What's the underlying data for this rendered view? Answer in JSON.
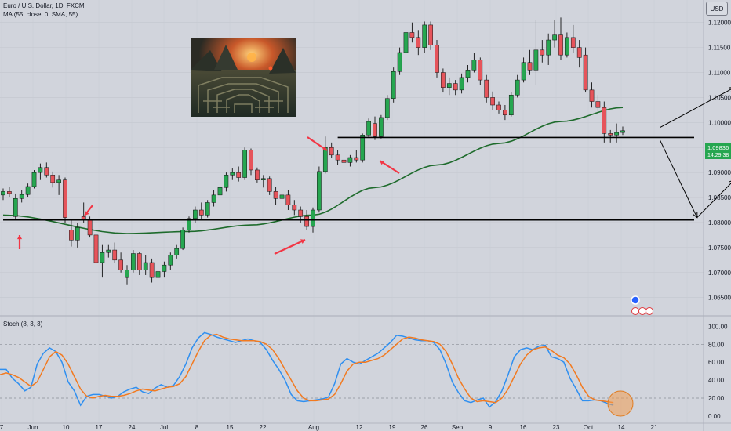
{
  "header": {
    "symbol_title": "Euro / U.S. Dollar, 1D, FXCM",
    "ma_label": "MA (55, close, 0, SMA, 55)",
    "currency": "USD"
  },
  "stoch_label": "Stoch (8, 3, 3)",
  "price_tag": {
    "price": "1.09836",
    "countdown": "14:29:38"
  },
  "colors": {
    "bull": "#26a650",
    "bear": "#e6545b",
    "ma": "#1e6b2c",
    "k_line": "#2f8ff0",
    "d_line": "#f27a20",
    "annotation_arrow": "#f23645",
    "background": "#d1d4dc"
  },
  "chart_data": [
    {
      "type": "candlestick",
      "title": "Euro / U.S. Dollar, 1D, FXCM",
      "xlabel": "",
      "ylabel": "",
      "x_ticks": [
        "7",
        "Jun",
        "10",
        "17",
        "24",
        "Jul",
        "8",
        "15",
        "22",
        "Aug",
        "12",
        "19",
        "26",
        "Sep",
        "9",
        "16",
        "23",
        "Oct",
        "14",
        "21"
      ],
      "y_ticks": [
        "1.12000",
        "1.11500",
        "1.11000",
        "1.10500",
        "1.10000",
        "1.09500",
        "1.09000",
        "1.08500",
        "1.08000",
        "1.07500",
        "1.07000",
        "1.06500"
      ],
      "ylim": [
        1.0615,
        1.1245
      ],
      "grid": true,
      "last_price": 1.09836,
      "candles": [
        [
          1.0855,
          1.0868,
          1.0845,
          1.0862
        ],
        [
          1.0862,
          1.0872,
          1.085,
          1.0858
        ],
        [
          1.0812,
          1.0858,
          1.0805,
          1.0848
        ],
        [
          1.0848,
          1.0865,
          1.084,
          1.0856
        ],
        [
          1.0856,
          1.0878,
          1.085,
          1.0872
        ],
        [
          1.0872,
          1.0905,
          1.0868,
          1.09
        ],
        [
          1.09,
          1.0918,
          1.0885,
          1.091
        ],
        [
          1.091,
          1.092,
          1.089,
          1.0895
        ],
        [
          1.0895,
          1.0902,
          1.087,
          1.088
        ],
        [
          1.088,
          1.0895,
          1.0855,
          1.0885
        ],
        [
          1.0885,
          1.089,
          1.08,
          1.081
        ],
        [
          1.0785,
          1.0805,
          1.0752,
          1.0765
        ],
        [
          1.0765,
          1.08,
          1.075,
          1.079
        ],
        [
          1.0812,
          1.084,
          1.08,
          1.0805
        ],
        [
          1.0805,
          1.0812,
          1.077,
          1.0775
        ],
        [
          1.0775,
          1.0785,
          1.07,
          1.072
        ],
        [
          1.072,
          1.0755,
          1.069,
          1.074
        ],
        [
          1.074,
          1.0755,
          1.073,
          1.0745
        ],
        [
          1.0745,
          1.076,
          1.072,
          1.0725
        ],
        [
          1.0725,
          1.074,
          1.07,
          1.0705
        ],
        [
          1.069,
          1.0715,
          1.0675,
          1.0705
        ],
        [
          1.0705,
          1.0745,
          1.07,
          1.0738
        ],
        [
          1.0738,
          1.0742,
          1.0695,
          1.0705
        ],
        [
          1.0705,
          1.0735,
          1.0695,
          1.072
        ],
        [
          1.072,
          1.0728,
          1.068,
          1.069
        ],
        [
          1.069,
          1.0715,
          1.0672,
          1.0702
        ],
        [
          1.0702,
          1.0722,
          1.069,
          1.0715
        ],
        [
          1.0715,
          1.074,
          1.0705,
          1.0735
        ],
        [
          1.0735,
          1.0755,
          1.0728,
          1.0748
        ],
        [
          1.0748,
          1.079,
          1.0745,
          1.0785
        ],
        [
          1.0785,
          1.0812,
          1.078,
          1.0808
        ],
        [
          1.0808,
          1.0832,
          1.08,
          1.0825
        ],
        [
          1.0825,
          1.084,
          1.0805,
          1.0815
        ],
        [
          1.0815,
          1.0845,
          1.081,
          1.084
        ],
        [
          1.084,
          1.0865,
          1.0832,
          1.0855
        ],
        [
          1.0855,
          1.0875,
          1.0845,
          1.087
        ],
        [
          1.087,
          1.09,
          1.0862,
          1.0895
        ],
        [
          1.0895,
          1.0908,
          1.0885,
          1.09
        ],
        [
          1.09,
          1.0912,
          1.0882,
          1.089
        ],
        [
          1.089,
          1.095,
          1.0885,
          1.0945
        ],
        [
          1.0945,
          1.0948,
          1.0895,
          1.0905
        ],
        [
          1.0905,
          1.091,
          1.088,
          1.0885
        ],
        [
          1.0885,
          1.0895,
          1.087,
          1.0888
        ],
        [
          1.0888,
          1.0892,
          1.0855,
          1.0862
        ],
        [
          1.0862,
          1.0872,
          1.0835,
          1.0848
        ],
        [
          1.0848,
          1.086,
          1.083,
          1.0855
        ],
        [
          1.0855,
          1.0865,
          1.0825,
          1.0835
        ],
        [
          1.0835,
          1.0845,
          1.0815,
          1.0825
        ],
        [
          1.0825,
          1.0832,
          1.08,
          1.0812
        ],
        [
          1.0812,
          1.0825,
          1.0785,
          1.0792
        ],
        [
          1.0792,
          1.083,
          1.078,
          1.0825
        ],
        [
          1.0825,
          1.0912,
          1.082,
          1.0902
        ],
        [
          1.0902,
          1.0972,
          1.0898,
          1.095
        ],
        [
          1.095,
          1.096,
          1.093,
          1.0935
        ],
        [
          1.0935,
          1.0945,
          1.0915,
          1.0925
        ],
        [
          1.0925,
          1.0942,
          1.09,
          1.092
        ],
        [
          1.092,
          1.0935,
          1.0912,
          1.093
        ],
        [
          1.093,
          1.0945,
          1.092,
          1.0925
        ],
        [
          1.0925,
          1.0978,
          1.092,
          1.0975
        ],
        [
          1.0975,
          1.1008,
          1.097,
          1.1002
        ],
        [
          1.0998,
          1.1012,
          1.0965,
          1.0972
        ],
        [
          1.0972,
          1.1015,
          1.0968,
          1.101
        ],
        [
          1.101,
          1.1055,
          1.1005,
          1.1048
        ],
        [
          1.1048,
          1.111,
          1.104,
          1.1102
        ],
        [
          1.1102,
          1.115,
          1.1095,
          1.114
        ],
        [
          1.114,
          1.1195,
          1.113,
          1.118
        ],
        [
          1.118,
          1.12,
          1.116,
          1.117
        ],
        [
          1.117,
          1.1185,
          1.1135,
          1.115
        ],
        [
          1.115,
          1.1202,
          1.114,
          1.1195
        ],
        [
          1.1195,
          1.1202,
          1.1145,
          1.1155
        ],
        [
          1.1155,
          1.1165,
          1.109,
          1.11
        ],
        [
          1.11,
          1.1108,
          1.106,
          1.107
        ],
        [
          1.107,
          1.109,
          1.1055,
          1.1078
        ],
        [
          1.1078,
          1.1085,
          1.1055,
          1.1065
        ],
        [
          1.1065,
          1.1098,
          1.1058,
          1.109
        ],
        [
          1.109,
          1.1115,
          1.108,
          1.1105
        ],
        [
          1.1105,
          1.114,
          1.11,
          1.1125
        ],
        [
          1.1125,
          1.113,
          1.1075,
          1.1085
        ],
        [
          1.1085,
          1.1095,
          1.104,
          1.105
        ],
        [
          1.105,
          1.1062,
          1.1025,
          1.1035
        ],
        [
          1.1035,
          1.1042,
          1.1018,
          1.1025
        ],
        [
          1.1025,
          1.1035,
          1.1005,
          1.1015
        ],
        [
          1.1015,
          1.106,
          1.1012,
          1.1055
        ],
        [
          1.1055,
          1.1095,
          1.105,
          1.1085
        ],
        [
          1.1085,
          1.113,
          1.108,
          1.112
        ],
        [
          1.112,
          1.1145,
          1.1095,
          1.1105
        ],
        [
          1.1105,
          1.1205,
          1.1075,
          1.1145
        ],
        [
          1.1145,
          1.1165,
          1.112,
          1.1135
        ],
        [
          1.1135,
          1.1178,
          1.1115,
          1.1165
        ],
        [
          1.1165,
          1.1205,
          1.115,
          1.1175
        ],
        [
          1.1175,
          1.121,
          1.1125,
          1.1135
        ],
        [
          1.1135,
          1.118,
          1.113,
          1.117
        ],
        [
          1.117,
          1.1195,
          1.114,
          1.115
        ],
        [
          1.115,
          1.1165,
          1.111,
          1.113
        ],
        [
          1.1135,
          1.115,
          1.106,
          1.1065
        ],
        [
          1.1065,
          1.108,
          1.103,
          1.1042
        ],
        [
          1.1042,
          1.1055,
          1.1018,
          1.103
        ],
        [
          1.103,
          1.1042,
          1.096,
          1.0978
        ],
        [
          1.0978,
          1.0985,
          1.096,
          1.0975
        ],
        [
          1.0975,
          1.0998,
          1.096,
          1.098
        ],
        [
          1.098,
          1.0992,
          1.0975,
          1.09836
        ]
      ],
      "ma55": [
        [
          0,
          1.0815
        ],
        [
          20,
          1.0778
        ],
        [
          30,
          1.0782
        ],
        [
          40,
          1.0795
        ],
        [
          50,
          1.0815
        ],
        [
          60,
          1.087
        ],
        [
          70,
          1.0915
        ],
        [
          80,
          1.0958
        ],
        [
          90,
          1.1002
        ],
        [
          100,
          1.103
        ]
      ],
      "support_lines": [
        {
          "price": 1.0805,
          "from_index": 0,
          "to_index": 124
        },
        {
          "price": 1.097,
          "from_index": 54,
          "to_index": 124
        }
      ],
      "projection_arrows": [
        {
          "from": [
            106,
            1.099
          ],
          "to": [
            118,
            1.107
          ]
        },
        {
          "from": [
            106,
            1.0965
          ],
          "to": [
            112,
            1.081
          ]
        },
        {
          "from": [
            112,
            1.081
          ],
          "to": [
            118,
            1.0885
          ]
        }
      ]
    },
    {
      "type": "line",
      "title": "Stoch (8, 3, 3)",
      "ylim": [
        -8,
        110
      ],
      "y_ticks": [
        "100.00",
        "80.00",
        "60.00",
        "40.00",
        "20.00",
        "0.00"
      ],
      "levels": [
        80,
        20
      ],
      "series": [
        {
          "name": "",
          "values": [
            52,
            52,
            42,
            36,
            28,
            32,
            58,
            70,
            76,
            72,
            60,
            38,
            28,
            12,
            22,
            24,
            24,
            22,
            20,
            22,
            27,
            30,
            32,
            27,
            25,
            31,
            35,
            32,
            34,
            44,
            58,
            76,
            87,
            93,
            91,
            88,
            86,
            84,
            82,
            84,
            86,
            84,
            82,
            74,
            62,
            52,
            40,
            24,
            17,
            16,
            17,
            18,
            19,
            21,
            36,
            58,
            64,
            60,
            58,
            62,
            66,
            70,
            76,
            82,
            90,
            89,
            87,
            85,
            84,
            84,
            82,
            74,
            58,
            38,
            26,
            17,
            15,
            18,
            20,
            10,
            16,
            28,
            46,
            66,
            74,
            76,
            74,
            78,
            79,
            66,
            64,
            60,
            42,
            30,
            17,
            17,
            18,
            17,
            14,
            12
          ]
        },
        {
          "name": "",
          "values": [
            46,
            48,
            46,
            43,
            38,
            33,
            38,
            52,
            66,
            72,
            68,
            58,
            44,
            30,
            22,
            20,
            22,
            23,
            22,
            22,
            23,
            25,
            28,
            30,
            29,
            28,
            30,
            32,
            33,
            36,
            44,
            58,
            72,
            84,
            90,
            91,
            88,
            86,
            85,
            84,
            84,
            84,
            83,
            80,
            74,
            64,
            52,
            40,
            28,
            20,
            17,
            17,
            18,
            19,
            24,
            36,
            50,
            58,
            60,
            60,
            62,
            64,
            68,
            74,
            80,
            86,
            88,
            87,
            85,
            84,
            83,
            80,
            72,
            58,
            42,
            30,
            20,
            16,
            17,
            16,
            15,
            20,
            30,
            44,
            58,
            68,
            74,
            76,
            77,
            73,
            68,
            65,
            58,
            46,
            32,
            22,
            18,
            17,
            16,
            15
          ]
        }
      ]
    }
  ]
}
